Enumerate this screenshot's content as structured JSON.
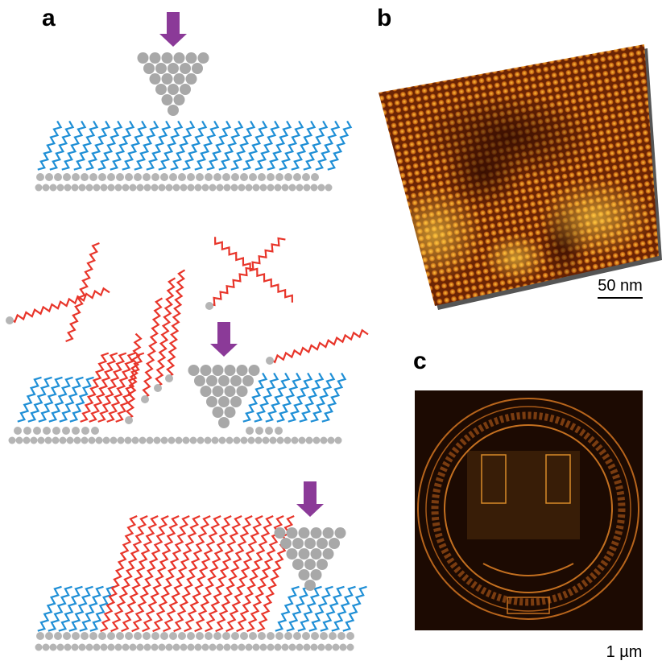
{
  "panels": [
    {
      "label": "a"
    },
    {
      "label": "b",
      "scale_bar": "50 nm"
    },
    {
      "label": "c",
      "scale_bar": "1 µm"
    }
  ]
}
